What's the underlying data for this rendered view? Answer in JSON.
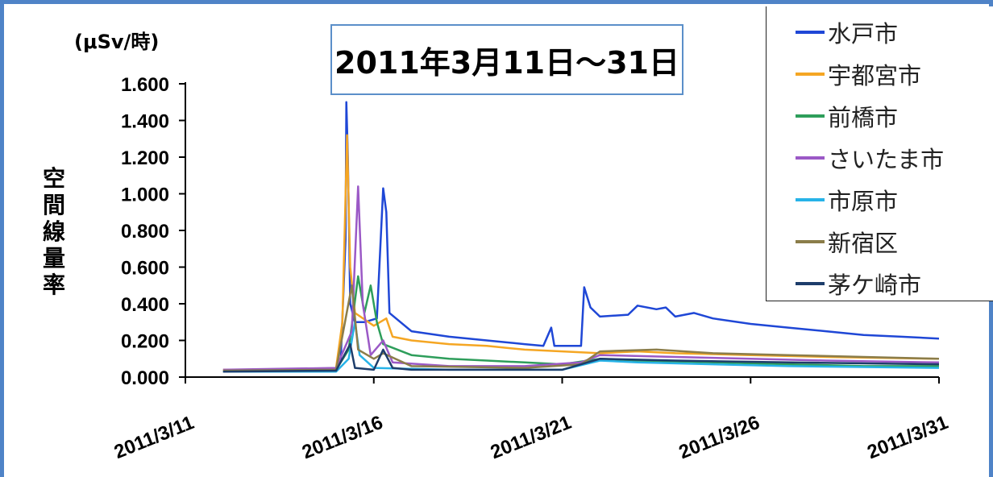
{
  "chart_data": {
    "type": "line",
    "title": "2011年3月11日～31日",
    "unit_label": "(μSv/時)",
    "ylabel": "空間線量率",
    "xlabel": "",
    "ylim": [
      0,
      1.6
    ],
    "y_ticks": [
      "0.000",
      "0.200",
      "0.400",
      "0.600",
      "0.800",
      "1.000",
      "1.200",
      "1.400",
      "1.600"
    ],
    "x_range": [
      "2011-03-11",
      "2011-03-31"
    ],
    "x_ticks": [
      "2011/3/11",
      "2011/3/16",
      "2011/3/21",
      "2011/3/26",
      "2011/3/31"
    ],
    "legend_position": "top-right",
    "series": [
      {
        "name": "水戸市",
        "color": "#1f47d6",
        "points": [
          [
            "2011-03-14 12:00",
            0.04
          ],
          [
            "2011-03-15 00:00",
            0.05
          ],
          [
            "2011-03-15 03:00",
            0.1
          ],
          [
            "2011-03-15 06:00",
            0.75
          ],
          [
            "2011-03-15 06:30",
            1.5
          ],
          [
            "2011-03-15 07:30",
            1.2
          ],
          [
            "2011-03-15 09:00",
            0.4
          ],
          [
            "2011-03-15 12:00",
            0.3
          ],
          [
            "2011-03-15 18:00",
            0.3
          ],
          [
            "2011-03-16 02:00",
            0.32
          ],
          [
            "2011-03-16 06:00",
            1.03
          ],
          [
            "2011-03-16 08:00",
            0.9
          ],
          [
            "2011-03-16 10:00",
            0.35
          ],
          [
            "2011-03-17 00:00",
            0.25
          ],
          [
            "2011-03-18 00:00",
            0.22
          ],
          [
            "2011-03-19 00:00",
            0.2
          ],
          [
            "2011-03-20 00:00",
            0.18
          ],
          [
            "2011-03-20 12:00",
            0.17
          ],
          [
            "2011-03-20 17:00",
            0.27
          ],
          [
            "2011-03-20 19:00",
            0.17
          ],
          [
            "2011-03-21 12:00",
            0.17
          ],
          [
            "2011-03-21 14:00",
            0.49
          ],
          [
            "2011-03-21 18:00",
            0.38
          ],
          [
            "2011-03-22 00:00",
            0.33
          ],
          [
            "2011-03-22 18:00",
            0.34
          ],
          [
            "2011-03-23 00:00",
            0.39
          ],
          [
            "2011-03-23 12:00",
            0.37
          ],
          [
            "2011-03-23 18:00",
            0.38
          ],
          [
            "2011-03-24 00:00",
            0.33
          ],
          [
            "2011-03-24 12:00",
            0.35
          ],
          [
            "2011-03-25 00:00",
            0.32
          ],
          [
            "2011-03-26 00:00",
            0.29
          ],
          [
            "2011-03-27 00:00",
            0.27
          ],
          [
            "2011-03-28 00:00",
            0.25
          ],
          [
            "2011-03-29 00:00",
            0.23
          ],
          [
            "2011-03-30 00:00",
            0.22
          ],
          [
            "2011-03-31 00:00",
            0.21
          ]
        ]
      },
      {
        "name": "宇都宮市",
        "color": "#f5a623",
        "points": [
          [
            "2011-03-12 00:00",
            0.04
          ],
          [
            "2011-03-14 00:00",
            0.04
          ],
          [
            "2011-03-15 00:00",
            0.05
          ],
          [
            "2011-03-15 04:00",
            0.3
          ],
          [
            "2011-03-15 07:00",
            1.32
          ],
          [
            "2011-03-15 09:00",
            0.6
          ],
          [
            "2011-03-15 12:00",
            0.35
          ],
          [
            "2011-03-16 00:00",
            0.28
          ],
          [
            "2011-03-16 08:00",
            0.32
          ],
          [
            "2011-03-16 12:00",
            0.22
          ],
          [
            "2011-03-17 00:00",
            0.2
          ],
          [
            "2011-03-18 00:00",
            0.18
          ],
          [
            "2011-03-19 00:00",
            0.17
          ],
          [
            "2011-03-20 00:00",
            0.15
          ],
          [
            "2011-03-21 00:00",
            0.14
          ],
          [
            "2011-03-22 00:00",
            0.13
          ],
          [
            "2011-03-23 00:00",
            0.14
          ],
          [
            "2011-03-24 00:00",
            0.13
          ],
          [
            "2011-03-26 00:00",
            0.12
          ],
          [
            "2011-03-28 00:00",
            0.11
          ],
          [
            "2011-03-31 00:00",
            0.1
          ]
        ]
      },
      {
        "name": "前橋市",
        "color": "#2e9e5b",
        "points": [
          [
            "2011-03-12 00:00",
            0.03
          ],
          [
            "2011-03-15 00:00",
            0.04
          ],
          [
            "2011-03-15 08:00",
            0.15
          ],
          [
            "2011-03-15 14:00",
            0.55
          ],
          [
            "2011-03-15 18:00",
            0.35
          ],
          [
            "2011-03-15 22:00",
            0.5
          ],
          [
            "2011-03-16 02:00",
            0.3
          ],
          [
            "2011-03-16 06:00",
            0.18
          ],
          [
            "2011-03-17 00:00",
            0.12
          ],
          [
            "2011-03-18 00:00",
            0.1
          ],
          [
            "2011-03-19 00:00",
            0.09
          ],
          [
            "2011-03-20 00:00",
            0.08
          ],
          [
            "2011-03-21 00:00",
            0.07
          ],
          [
            "2011-03-22 00:00",
            0.1
          ],
          [
            "2011-03-23 00:00",
            0.09
          ],
          [
            "2011-03-25 00:00",
            0.08
          ],
          [
            "2011-03-27 00:00",
            0.07
          ],
          [
            "2011-03-29 00:00",
            0.06
          ],
          [
            "2011-03-31 00:00",
            0.06
          ]
        ]
      },
      {
        "name": "さいたま市",
        "color": "#9b59c6",
        "points": [
          [
            "2011-03-12 00:00",
            0.04
          ],
          [
            "2011-03-15 00:00",
            0.05
          ],
          [
            "2011-03-15 10:00",
            0.25
          ],
          [
            "2011-03-15 14:00",
            1.04
          ],
          [
            "2011-03-15 17:00",
            0.4
          ],
          [
            "2011-03-15 22:00",
            0.12
          ],
          [
            "2011-03-16 06:00",
            0.2
          ],
          [
            "2011-03-16 12:00",
            0.08
          ],
          [
            "2011-03-18 00:00",
            0.06
          ],
          [
            "2011-03-20 00:00",
            0.06
          ],
          [
            "2011-03-21 12:00",
            0.08
          ],
          [
            "2011-03-22 00:00",
            0.12
          ],
          [
            "2011-03-24 00:00",
            0.11
          ],
          [
            "2011-03-26 00:00",
            0.1
          ],
          [
            "2011-03-28 00:00",
            0.09
          ],
          [
            "2011-03-31 00:00",
            0.08
          ]
        ]
      },
      {
        "name": "市原市",
        "color": "#27b3e8",
        "points": [
          [
            "2011-03-12 00:00",
            0.03
          ],
          [
            "2011-03-15 00:00",
            0.03
          ],
          [
            "2011-03-15 08:00",
            0.1
          ],
          [
            "2011-03-15 12:00",
            0.3
          ],
          [
            "2011-03-15 15:00",
            0.12
          ],
          [
            "2011-03-16 00:00",
            0.05
          ],
          [
            "2011-03-18 00:00",
            0.04
          ],
          [
            "2011-03-21 00:00",
            0.04
          ],
          [
            "2011-03-22 00:00",
            0.09
          ],
          [
            "2011-03-23 00:00",
            0.08
          ],
          [
            "2011-03-25 00:00",
            0.07
          ],
          [
            "2011-03-27 00:00",
            0.06
          ],
          [
            "2011-03-31 00:00",
            0.05
          ]
        ]
      },
      {
        "name": "新宿区",
        "color": "#8b7d4a",
        "points": [
          [
            "2011-03-12 00:00",
            0.035
          ],
          [
            "2011-03-15 00:00",
            0.04
          ],
          [
            "2011-03-15 10:00",
            0.5
          ],
          [
            "2011-03-15 14:00",
            0.15
          ],
          [
            "2011-03-16 00:00",
            0.1
          ],
          [
            "2011-03-16 06:00",
            0.13
          ],
          [
            "2011-03-17 00:00",
            0.06
          ],
          [
            "2011-03-20 00:00",
            0.05
          ],
          [
            "2011-03-21 12:00",
            0.07
          ],
          [
            "2011-03-22 00:00",
            0.14
          ],
          [
            "2011-03-23 12:00",
            0.15
          ],
          [
            "2011-03-25 00:00",
            0.13
          ],
          [
            "2011-03-27 00:00",
            0.12
          ],
          [
            "2011-03-29 00:00",
            0.11
          ],
          [
            "2011-03-31 00:00",
            0.1
          ]
        ]
      },
      {
        "name": "茅ケ崎市",
        "color": "#1d3d6b",
        "points": [
          [
            "2011-03-12 00:00",
            0.03
          ],
          [
            "2011-03-15 00:00",
            0.035
          ],
          [
            "2011-03-15 09:00",
            0.18
          ],
          [
            "2011-03-15 12:00",
            0.05
          ],
          [
            "2011-03-16 00:00",
            0.04
          ],
          [
            "2011-03-16 06:00",
            0.15
          ],
          [
            "2011-03-16 12:00",
            0.05
          ],
          [
            "2011-03-17 00:00",
            0.04
          ],
          [
            "2011-03-21 00:00",
            0.04
          ],
          [
            "2011-03-22 00:00",
            0.1
          ],
          [
            "2011-03-24 00:00",
            0.09
          ],
          [
            "2011-03-27 00:00",
            0.08
          ],
          [
            "2011-03-31 00:00",
            0.07
          ]
        ]
      }
    ]
  }
}
